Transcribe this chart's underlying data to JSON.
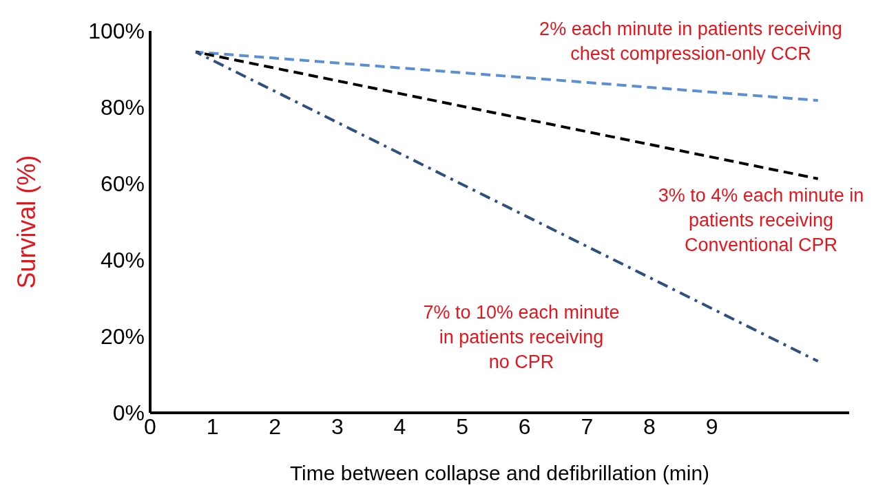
{
  "chart_data": {
    "type": "line",
    "xlabel": "Time between collapse and defibrillation (min)",
    "ylabel": "Survival (%)",
    "x": [
      0.73,
      10.7
    ],
    "series": [
      {
        "color": "#5b8fd4",
        "line_style": "dashed",
        "values": [
          94.5,
          81.8
        ]
      },
      {
        "color": "#000000",
        "line_style": "dashed",
        "values": [
          94.5,
          61.3
        ]
      },
      {
        "color": "#2f4f80",
        "line_style": "dashdot",
        "values": [
          94.5,
          13.5
        ]
      }
    ],
    "xlim": [
      0,
      11.2
    ],
    "xticks": [
      0,
      1,
      2,
      3,
      4,
      5,
      6,
      7,
      8,
      9
    ],
    "ylim": [
      0,
      100
    ],
    "yticks": [
      {
        "value": 0,
        "label": "0%"
      },
      {
        "value": 20,
        "label": "20%"
      },
      {
        "value": 40,
        "label": "40%"
      },
      {
        "value": 60,
        "label": "60%"
      },
      {
        "value": 80,
        "label": "80%"
      },
      {
        "value": 100,
        "label": "100%"
      }
    ],
    "grid": false,
    "legend": false,
    "marker": "none",
    "annotations": [
      "2% each minute in patients receiving\nchest compression-only CCR",
      "3% to 4% each minute in\npatients receiving\nConventional CPR",
      "7% to 10% each minute\nin patients receiving\nno CPR"
    ]
  }
}
